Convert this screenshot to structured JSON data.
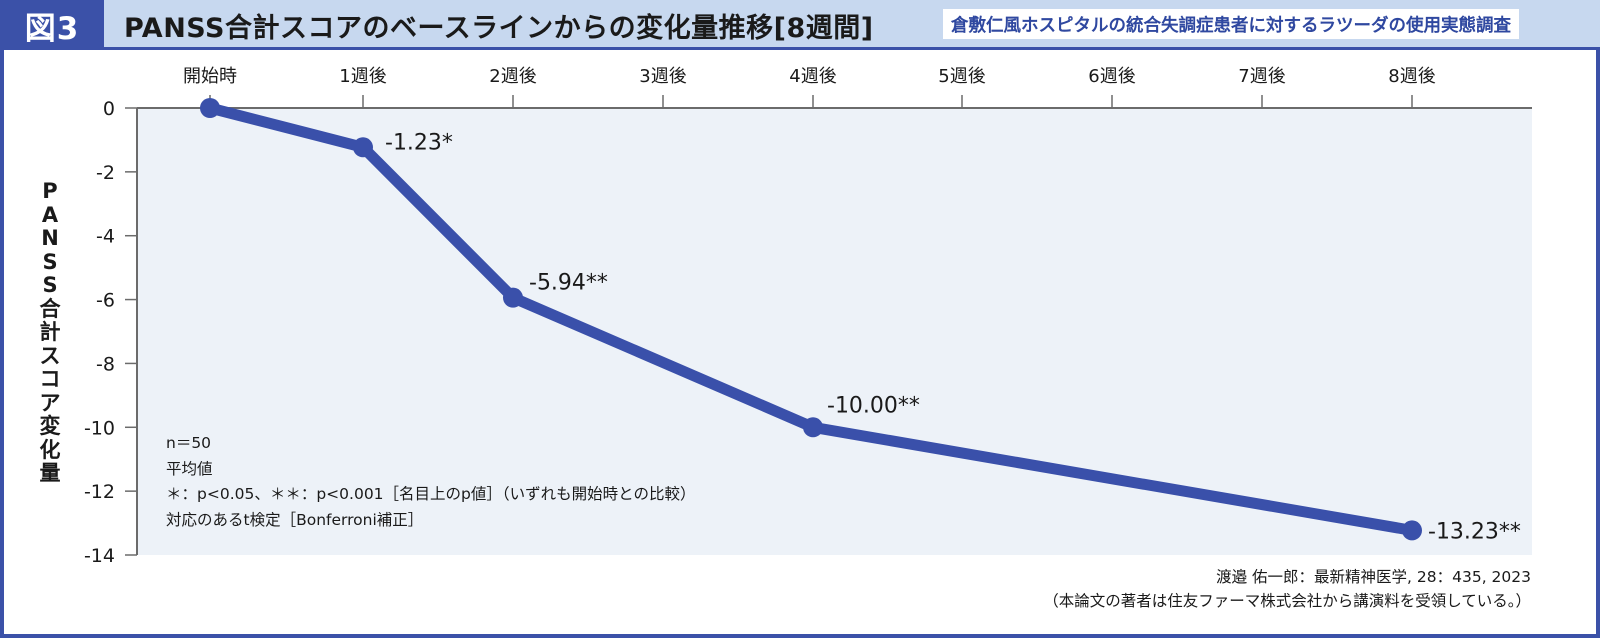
{
  "header": {
    "figure_label": "図3",
    "title": "PANSS合計スコアのベースラインからの変化量推移[8週間]",
    "subtitle": "倉敷仁風ホスピタルの統合失調症患者に対するラツーダの使用実態調査"
  },
  "colors": {
    "frame": "#3b51a8",
    "header_band": "#c7d8ef",
    "plot_background": "#edf2f8",
    "line": "#3a50aa",
    "axis": "#6b6b6b",
    "text": "#1a1a1a"
  },
  "notes": {
    "line1": "n＝50",
    "line2": "平均値",
    "line3": "＊：p<0.05、＊＊：p<0.001［名目上のp値］（いずれも開始時との比較）",
    "line4": "対応のあるt検定［Bonferroni補正］"
  },
  "source": {
    "line1": "渡邉 佑一郎：最新精神医学, 28：435, 2023",
    "line2": "（本論文の著者は住友ファーマ株式会社から講演料を受領している。）"
  },
  "chart_data": {
    "type": "line",
    "title": "PANSS合計スコアのベースラインからの変化量推移[8週間]",
    "subtitle": "倉敷仁風ホスピタルの統合失調症患者に対するラツーダの使用実態調査",
    "xlabel": "",
    "ylabel": "PANSS合計スコア変化量",
    "categories": [
      "開始時",
      "1週後",
      "2週後",
      "3週後",
      "4週後",
      "5週後",
      "6週後",
      "7週後",
      "8週後"
    ],
    "x_axis_position": "top",
    "yticks": [
      0,
      -2,
      -4,
      -6,
      -8,
      -10,
      -12,
      -14
    ],
    "ylim": [
      -14,
      0
    ],
    "grid": false,
    "legend": null,
    "series": [
      {
        "name": "PANSS合計スコア変化量（平均値）",
        "points": [
          {
            "x": "開始時",
            "y": 0,
            "label": ""
          },
          {
            "x": "1週後",
            "y": -1.23,
            "label": "-1.23*"
          },
          {
            "x": "2週後",
            "y": -5.94,
            "label": "-5.94**"
          },
          {
            "x": "4週後",
            "y": -10.0,
            "label": "-10.00**"
          },
          {
            "x": "8週後",
            "y": -13.23,
            "label": "-13.23**"
          }
        ]
      }
    ],
    "annotations": [
      "n＝50",
      "平均値",
      "＊：p<0.05、＊＊：p<0.001［名目上のp値］（いずれも開始時との比較）",
      "対応のあるt検定［Bonferroni補正］"
    ]
  }
}
